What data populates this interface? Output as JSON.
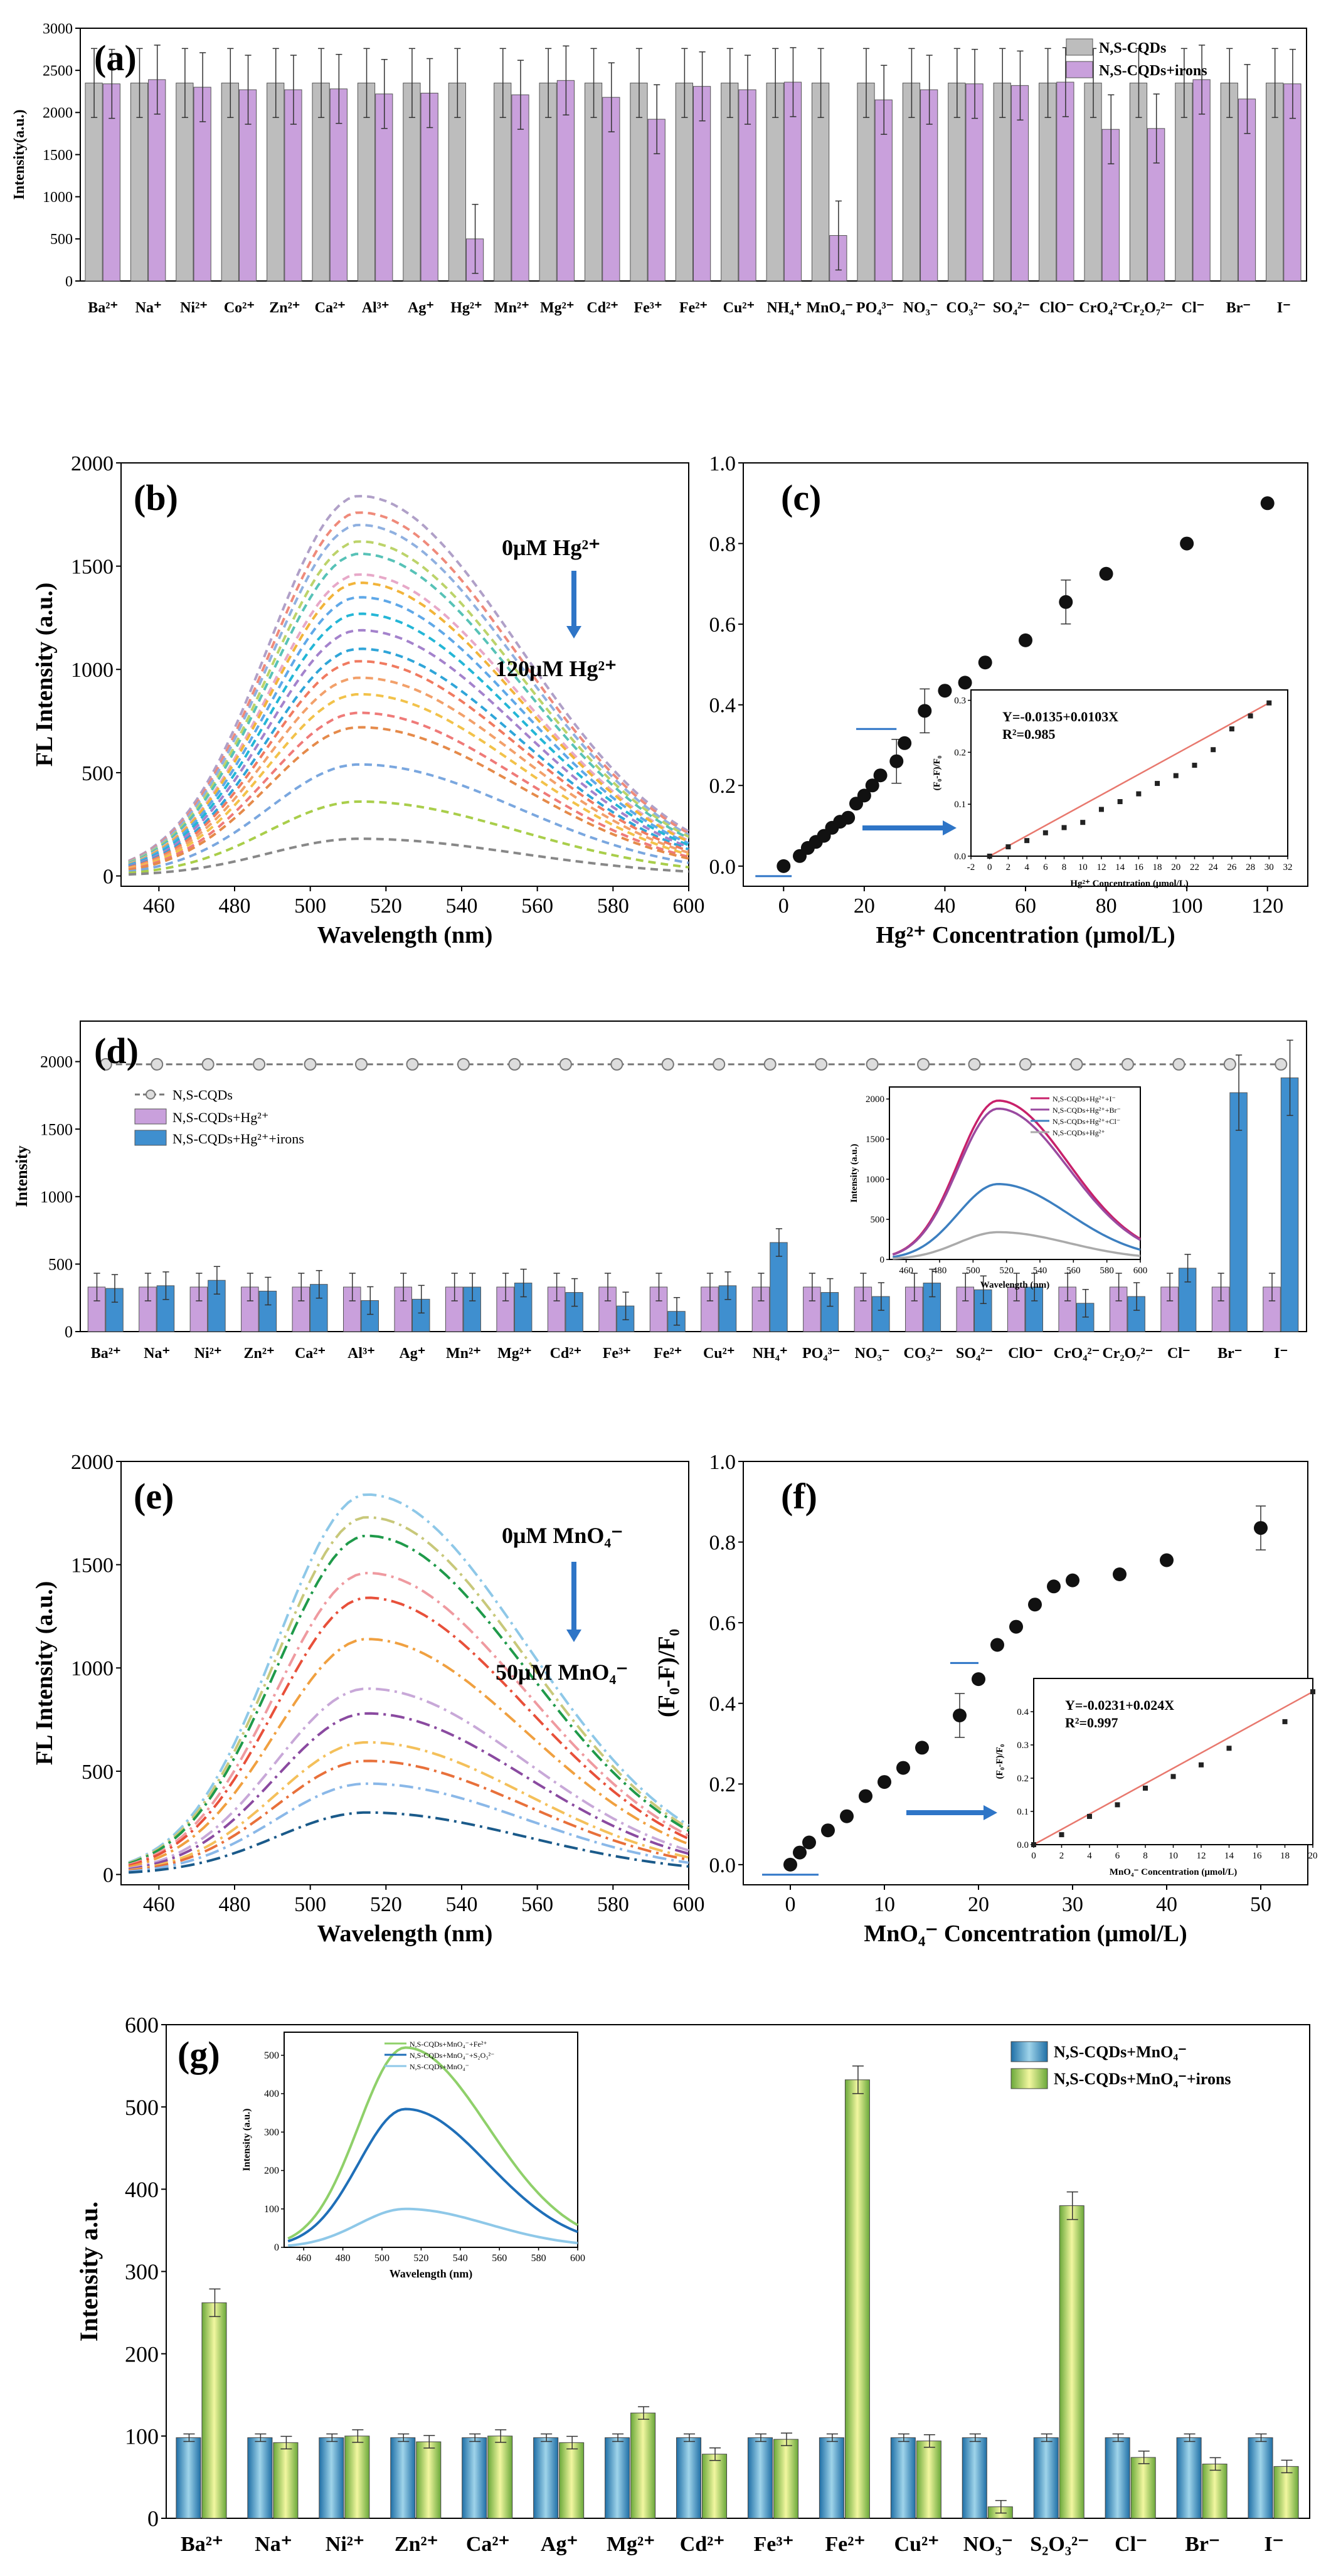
{
  "palette": {
    "gray": "#bdbdbd",
    "purple": "#c9a0dc",
    "blue": "#3f8fcf",
    "teal": "#3aa7c9",
    "green": "#a9d66a",
    "red": "#e8786e",
    "dot": "#111111",
    "arrow": "#2e75c7"
  },
  "chart_data": [
    {
      "panel": "(a)",
      "type": "bar",
      "ylabel": "Intensity(a.u.)",
      "ylim": [
        0,
        3000
      ],
      "yticks": [
        0,
        500,
        1000,
        1500,
        2000,
        2500,
        3000
      ],
      "legend": [
        "N,S-CQDs",
        "N,S-CQDs+irons"
      ],
      "categories": [
        "Ba²⁺",
        "Na⁺",
        "Ni²⁺",
        "Co²⁺",
        "Zn²⁺",
        "Ca²⁺",
        "Al³⁺",
        "Ag⁺",
        "Hg²⁺",
        "Mn²⁺",
        "Mg²⁺",
        "Cd²⁺",
        "Fe³⁺",
        "Fe²⁺",
        "Cu²⁺",
        "NH₄⁺",
        "MnO₄⁻",
        "PO₄³⁻",
        "NO₃⁻",
        "CO₃²⁻",
        "SO₄²⁻",
        "ClO⁻",
        "CrO₄²⁻",
        "Cr₂O₇²⁻",
        "Cl⁻",
        "Br⁻",
        "I⁻"
      ],
      "series": [
        {
          "name": "N,S-CQDs",
          "values": [
            2350,
            2350,
            2350,
            2350,
            2350,
            2350,
            2350,
            2350,
            2350,
            2350,
            2350,
            2350,
            2350,
            2350,
            2350,
            2350,
            2350,
            2350,
            2350,
            2350,
            2350,
            2350,
            2350,
            2350,
            2350,
            2350,
            2350
          ]
        },
        {
          "name": "N,S-CQDs+irons",
          "values": [
            2340,
            2390,
            2300,
            2270,
            2270,
            2280,
            2220,
            2230,
            500,
            2210,
            2380,
            2180,
            1920,
            2310,
            2270,
            2360,
            540,
            2150,
            2270,
            2340,
            2320,
            2360,
            1800,
            1810,
            2390,
            2160,
            2340
          ]
        }
      ]
    },
    {
      "panel": "(b)",
      "type": "line",
      "xlabel": "Wavelength (nm)",
      "ylabel": "FL Intensity (a.u.)",
      "xlim": [
        450,
        600
      ],
      "ylim": [
        -50,
        2000
      ],
      "xticks": [
        460,
        480,
        500,
        520,
        540,
        560,
        580,
        600
      ],
      "yticks": [
        0,
        500,
        1000,
        1500,
        2000
      ],
      "annotation_top": "0μM Hg²⁺",
      "annotation_bottom": "120μM Hg²⁺",
      "peak_nm": 513,
      "peaks": [
        1840,
        1760,
        1700,
        1620,
        1560,
        1460,
        1420,
        1350,
        1270,
        1190,
        1100,
        1040,
        960,
        880,
        790,
        720,
        540,
        360,
        180
      ],
      "colors": [
        "#b0a0c8",
        "#ef8a7a",
        "#8fb0e0",
        "#bcd36a",
        "#57c2b7",
        "#e7a8c8",
        "#f2b43a",
        "#5fa8e8",
        "#24b6d6",
        "#a482cc",
        "#2fa5d8",
        "#f07a60",
        "#f2a06a",
        "#f2c24a",
        "#ef7a78",
        "#e58a4a",
        "#7aa7df",
        "#a9ce4a",
        "#888888"
      ]
    },
    {
      "panel": "(c)",
      "type": "scatter",
      "xlabel": "Hg²⁺ Concentration (μmol/L)",
      "ylabel": "",
      "xlim": [
        -10,
        130
      ],
      "ylim": [
        -0.05,
        1.0
      ],
      "xticks": [
        0,
        20,
        40,
        60,
        80,
        100,
        120
      ],
      "yticks": [
        0.0,
        0.2,
        0.4,
        0.6,
        0.8,
        1.0
      ],
      "x": [
        0,
        4,
        6,
        8,
        10,
        12,
        14,
        16,
        18,
        20,
        22,
        24,
        28,
        30,
        35,
        40,
        45,
        50,
        60,
        70,
        80,
        100,
        120
      ],
      "y": [
        0.0,
        0.025,
        0.045,
        0.06,
        0.075,
        0.095,
        0.11,
        0.12,
        0.155,
        0.175,
        0.2,
        0.225,
        0.26,
        0.305,
        0.385,
        0.435,
        0.455,
        0.505,
        0.56,
        0.655,
        0.725,
        0.8,
        0.9
      ],
      "inset": {
        "equation": "Y=-0.0135+0.0103X",
        "r2": "R²=0.985",
        "xlabel": "Hg²⁺ Concentration (μmol/L)",
        "ylabel": "(F₀-F)/F₀",
        "xticks": [
          -2,
          0,
          2,
          4,
          6,
          8,
          10,
          12,
          14,
          16,
          18,
          20,
          22,
          24,
          26,
          28,
          30,
          32
        ],
        "yticks": [
          0.0,
          0.1,
          0.2,
          0.3
        ],
        "x": [
          0,
          2,
          4,
          6,
          8,
          10,
          12,
          14,
          16,
          18,
          20,
          22,
          24,
          26,
          28,
          30
        ],
        "y": [
          0.0,
          0.018,
          0.03,
          0.045,
          0.055,
          0.065,
          0.09,
          0.105,
          0.12,
          0.14,
          0.155,
          0.175,
          0.205,
          0.245,
          0.27,
          0.295
        ]
      }
    },
    {
      "panel": "(d)",
      "type": "bar",
      "ylabel": "Intensity",
      "ylim": [
        0,
        2300
      ],
      "yticks": [
        0,
        500,
        1000,
        1500,
        2000
      ],
      "legend": [
        "N,S-CQDs",
        "N,S-CQDs+Hg²⁺",
        "N,S-CQDs+Hg²⁺+irons"
      ],
      "categories": [
        "Ba²⁺",
        "Na⁺",
        "Ni²⁺",
        "Zn²⁺",
        "Ca²⁺",
        "Al³⁺",
        "Ag⁺",
        "Mn²⁺",
        "Mg²⁺",
        "Cd²⁺",
        "Fe³⁺",
        "Fe²⁺",
        "Cu²⁺",
        "NH₄⁺",
        "PO₄³⁻",
        "NO₃⁻",
        "CO₃²⁻",
        "SO₄²⁻",
        "ClO⁻",
        "CrO₄²⁻",
        "Cr₂O₇²⁻",
        "Cl⁻",
        "Br⁻",
        "I⁻"
      ],
      "series": [
        {
          "name": "N,S-CQDs",
          "values": [
            1980,
            1980,
            1980,
            1980,
            1980,
            1980,
            1980,
            1980,
            1980,
            1980,
            1980,
            1980,
            1980,
            1980,
            1980,
            1980,
            1980,
            1980,
            1980,
            1980,
            1980,
            1980,
            1980,
            1980
          ]
        },
        {
          "name": "N,S-CQDs+Hg²⁺",
          "values": [
            330,
            330,
            330,
            330,
            330,
            330,
            330,
            330,
            330,
            330,
            330,
            330,
            330,
            330,
            330,
            330,
            330,
            330,
            330,
            330,
            330,
            330,
            330,
            330
          ]
        },
        {
          "name": "N,S-CQDs+Hg²⁺+irons",
          "values": [
            320,
            340,
            380,
            300,
            350,
            230,
            240,
            330,
            360,
            290,
            190,
            150,
            340,
            660,
            290,
            260,
            360,
            310,
            330,
            210,
            260,
            470,
            1770,
            1880
          ]
        }
      ],
      "inset": {
        "xlabel": "Wavelength (nm)",
        "ylabel": "Intensity (a.u.)",
        "xticks": [
          460,
          480,
          500,
          520,
          540,
          560,
          580,
          600
        ],
        "yticks": [
          0,
          500,
          1000,
          1500,
          2000
        ],
        "legend": [
          "N,S-CQDs+Hg²⁺+I⁻",
          "N,S-CQDs+Hg²⁺+Br⁻",
          "N,S-CQDs+Hg²⁺+Cl⁻",
          "N,S-CQDs+Hg²⁺"
        ],
        "peaks": [
          1980,
          1880,
          940,
          340
        ],
        "colors": [
          "#c8206a",
          "#9a4aa0",
          "#3c7fc0",
          "#aaaaaa"
        ]
      }
    },
    {
      "panel": "(e)",
      "type": "line",
      "xlabel": "Wavelength (nm)",
      "ylabel": "FL Intensity (a.u.)",
      "xlim": [
        450,
        600
      ],
      "ylim": [
        -50,
        2000
      ],
      "xticks": [
        460,
        480,
        500,
        520,
        540,
        560,
        580,
        600
      ],
      "yticks": [
        0,
        500,
        1000,
        1500,
        2000
      ],
      "annotation_top": "0μM MnO₄⁻",
      "annotation_bottom": "50μM MnO₄⁻",
      "peak_nm": 515,
      "peaks": [
        1840,
        1730,
        1640,
        1460,
        1340,
        1140,
        900,
        780,
        640,
        550,
        440,
        300
      ],
      "colors": [
        "#8ec8e8",
        "#c8c87a",
        "#1f9a4a",
        "#ef9aa0",
        "#e8503a",
        "#f0a040",
        "#c8a8d8",
        "#8a4aa0",
        "#f4c05a",
        "#e8703a",
        "#8ab8e8",
        "#1a5a8a"
      ]
    },
    {
      "panel": "(f)",
      "type": "scatter",
      "xlabel": "MnO₄⁻ Concentration (μmol/L)",
      "ylabel": "(F₀-F)/F₀",
      "xlim": [
        -5,
        55
      ],
      "ylim": [
        -0.05,
        1.0
      ],
      "xticks": [
        0,
        10,
        20,
        30,
        40,
        50
      ],
      "yticks": [
        0.0,
        0.2,
        0.4,
        0.6,
        0.8,
        1.0
      ],
      "x": [
        0,
        1,
        2,
        4,
        6,
        8,
        10,
        12,
        14,
        18,
        20,
        22,
        24,
        26,
        28,
        30,
        35,
        40,
        50
      ],
      "y": [
        0.0,
        0.03,
        0.055,
        0.085,
        0.12,
        0.17,
        0.205,
        0.24,
        0.29,
        0.37,
        0.46,
        0.545,
        0.59,
        0.645,
        0.69,
        0.705,
        0.72,
        0.755,
        0.835
      ],
      "inset": {
        "equation": "Y=-0.0231+0.024X",
        "r2": "R²=0.997",
        "xlabel": "MnO₄⁻ Concentration (μmol/L)",
        "ylabel": "(F₀-F)/F₀",
        "xticks": [
          0,
          2,
          4,
          6,
          8,
          10,
          12,
          14,
          16,
          18,
          20
        ],
        "yticks": [
          0.0,
          0.1,
          0.2,
          0.3,
          0.4
        ],
        "x": [
          0,
          2,
          4,
          6,
          8,
          10,
          12,
          14,
          18,
          20
        ],
        "y": [
          0.0,
          0.03,
          0.085,
          0.12,
          0.17,
          0.205,
          0.24,
          0.29,
          0.37,
          0.46
        ]
      }
    },
    {
      "panel": "(g)",
      "type": "bar",
      "ylabel": "Intensity a.u.",
      "ylim": [
        0,
        600
      ],
      "yticks": [
        0,
        100,
        200,
        300,
        400,
        500,
        600
      ],
      "legend": [
        "N,S-CQDs+MnO₄⁻",
        "N,S-CQDs+MnO₄⁻+irons"
      ],
      "categories": [
        "Ba²⁺",
        "Na⁺",
        "Ni²⁺",
        "Zn²⁺",
        "Ca²⁺",
        "Ag⁺",
        "Mg²⁺",
        "Cd²⁺",
        "Fe³⁺",
        "Fe²⁺",
        "Cu²⁺",
        "NO₃⁻",
        "S₂O₃²⁻",
        "Cl⁻",
        "Br⁻",
        "I⁻"
      ],
      "series": [
        {
          "name": "N,S-CQDs+MnO₄⁻",
          "values": [
            98,
            98,
            98,
            98,
            98,
            98,
            98,
            98,
            98,
            98,
            98,
            98,
            98,
            98,
            98,
            98
          ]
        },
        {
          "name": "N,S-CQDs+MnO₄⁻+irons",
          "values": [
            262,
            92,
            100,
            93,
            100,
            92,
            128,
            78,
            96,
            533,
            94,
            14,
            380,
            74,
            66,
            63
          ]
        }
      ],
      "inset": {
        "xlabel": "Wavelength (nm)",
        "ylabel": "Intensity (a.u.)",
        "xticks": [
          460,
          480,
          500,
          520,
          540,
          560,
          580,
          600
        ],
        "yticks": [
          0,
          100,
          200,
          300,
          400,
          500
        ],
        "legend": [
          "N,S-CQDs+MnO₄⁻+Fe²⁺",
          "N,S-CQDs+MnO₄⁻+S₂O₃²⁻",
          "N,S-CQDs+MnO₄⁻"
        ],
        "peaks": [
          520,
          360,
          100
        ],
        "colors": [
          "#8fd06a",
          "#1f6fb8",
          "#8ec8e8"
        ]
      }
    }
  ]
}
